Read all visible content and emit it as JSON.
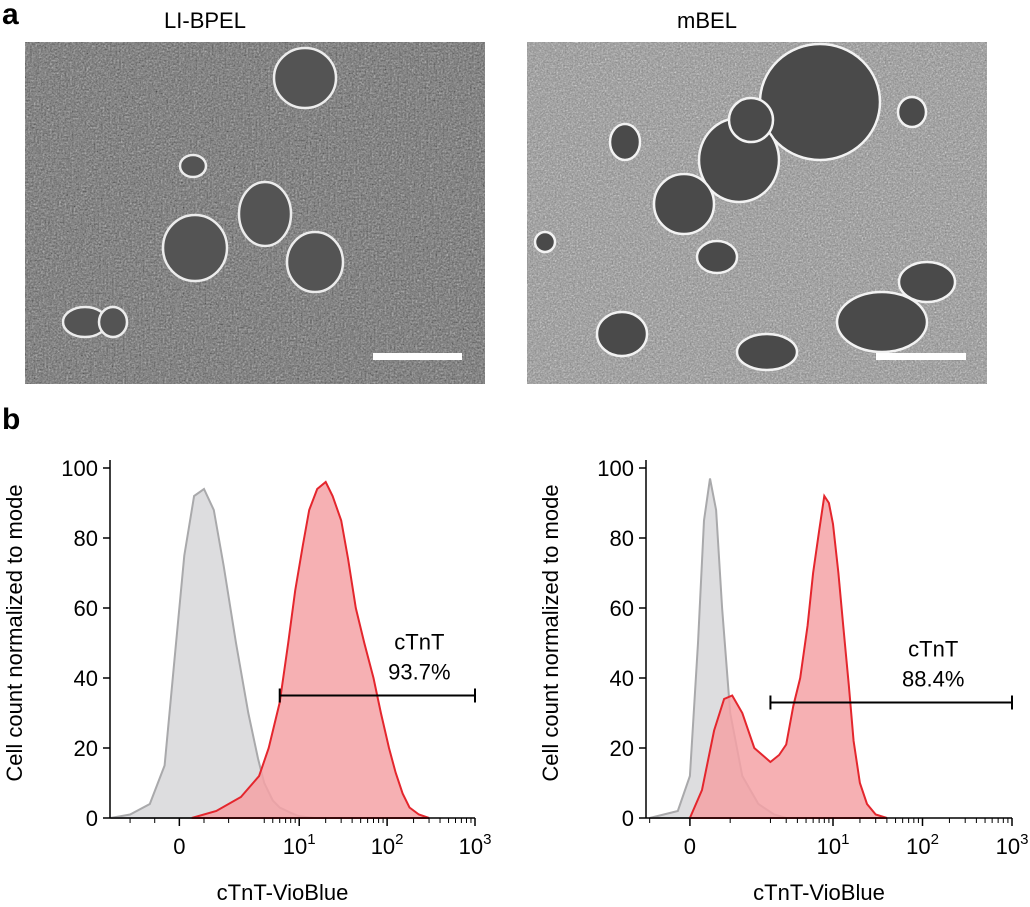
{
  "figure": {
    "panel_a_letter": "a",
    "panel_b_letter": "b",
    "images": [
      {
        "title": "LI-BPEL"
      },
      {
        "title": "mBEL"
      }
    ]
  },
  "colors": {
    "control_fill": "#d9d9db",
    "control_line": "#a9a9ab",
    "ctnt_fill": "#f4a2a6",
    "ctnt_line": "#e4262d"
  },
  "chart_data": [
    {
      "type": "area",
      "xlabel": "cTnT-VioBlue",
      "ylabel": "Cell count normalized to mode",
      "ylim": [
        0,
        100
      ],
      "yticks": [
        0,
        20,
        40,
        60,
        80,
        100
      ],
      "xscale": "biexponential",
      "xticks": [
        "0",
        "10^1",
        "10^2",
        "10^3"
      ],
      "gate": {
        "label": "cTnT",
        "percent": "93.7%",
        "x_range": [
          6,
          1000
        ],
        "y": 35
      },
      "series": [
        {
          "role": "control",
          "points": [
            [
              -2.8,
              0
            ],
            [
              -2,
              1
            ],
            [
              -1.2,
              4
            ],
            [
              -0.6,
              15
            ],
            [
              -0.2,
              45
            ],
            [
              0.2,
              75
            ],
            [
              0.6,
              92
            ],
            [
              1,
              94
            ],
            [
              1.4,
              88
            ],
            [
              1.8,
              72
            ],
            [
              2.3,
              50
            ],
            [
              2.8,
              30
            ],
            [
              3.4,
              17
            ],
            [
              4,
              10
            ],
            [
              5,
              5
            ],
            [
              6,
              3
            ],
            [
              8,
              1.5
            ],
            [
              10,
              0.5
            ],
            [
              15,
              0
            ]
          ]
        },
        {
          "role": "cTnT",
          "points": [
            [
              0.5,
              0
            ],
            [
              1.5,
              2
            ],
            [
              2.5,
              6
            ],
            [
              3.5,
              12
            ],
            [
              4.5,
              20
            ],
            [
              6,
              33
            ],
            [
              7.5,
              50
            ],
            [
              9,
              65
            ],
            [
              11,
              78
            ],
            [
              13,
              88
            ],
            [
              16,
              94
            ],
            [
              20,
              96
            ],
            [
              24,
              92
            ],
            [
              30,
              85
            ],
            [
              36,
              74
            ],
            [
              44,
              60
            ],
            [
              55,
              50
            ],
            [
              70,
              40
            ],
            [
              85,
              30
            ],
            [
              105,
              20
            ],
            [
              125,
              13
            ],
            [
              150,
              7
            ],
            [
              180,
              3
            ],
            [
              230,
              1
            ],
            [
              300,
              0
            ]
          ]
        }
      ]
    },
    {
      "type": "area",
      "xlabel": "cTnT-VioBlue",
      "ylabel": "Cell count normalized to mode",
      "ylim": [
        0,
        100
      ],
      "yticks": [
        0,
        20,
        40,
        60,
        80,
        100
      ],
      "xscale": "biexponential",
      "xticks": [
        "0",
        "10^1",
        "10^2",
        "10^3"
      ],
      "gate": {
        "label": "cTnT",
        "percent": "88.4%",
        "x_range": [
          2,
          1000
        ],
        "y": 33
      },
      "series": [
        {
          "role": "control",
          "points": [
            [
              -1,
              0
            ],
            [
              -0.3,
              2
            ],
            [
              0,
              12
            ],
            [
              0.2,
              50
            ],
            [
              0.35,
              85
            ],
            [
              0.5,
              97
            ],
            [
              0.65,
              88
            ],
            [
              0.8,
              60
            ],
            [
              1,
              30
            ],
            [
              1.3,
              12
            ],
            [
              1.7,
              4
            ],
            [
              2.2,
              1
            ],
            [
              3,
              0
            ]
          ]
        },
        {
          "role": "cTnT",
          "points": [
            [
              0,
              0
            ],
            [
              0.3,
              8
            ],
            [
              0.6,
              25
            ],
            [
              0.85,
              34
            ],
            [
              1.05,
              35
            ],
            [
              1.3,
              30
            ],
            [
              1.6,
              20
            ],
            [
              2,
              16
            ],
            [
              2.5,
              18
            ],
            [
              3,
              21
            ],
            [
              3.6,
              32
            ],
            [
              4.3,
              40
            ],
            [
              5.2,
              55
            ],
            [
              6,
              70
            ],
            [
              7,
              82
            ],
            [
              8,
              92
            ],
            [
              9,
              90
            ],
            [
              10,
              84
            ],
            [
              11.5,
              70
            ],
            [
              13,
              55
            ],
            [
              15,
              38
            ],
            [
              17,
              22
            ],
            [
              20,
              10
            ],
            [
              24,
              4
            ],
            [
              30,
              1
            ],
            [
              40,
              0
            ]
          ]
        }
      ]
    }
  ]
}
